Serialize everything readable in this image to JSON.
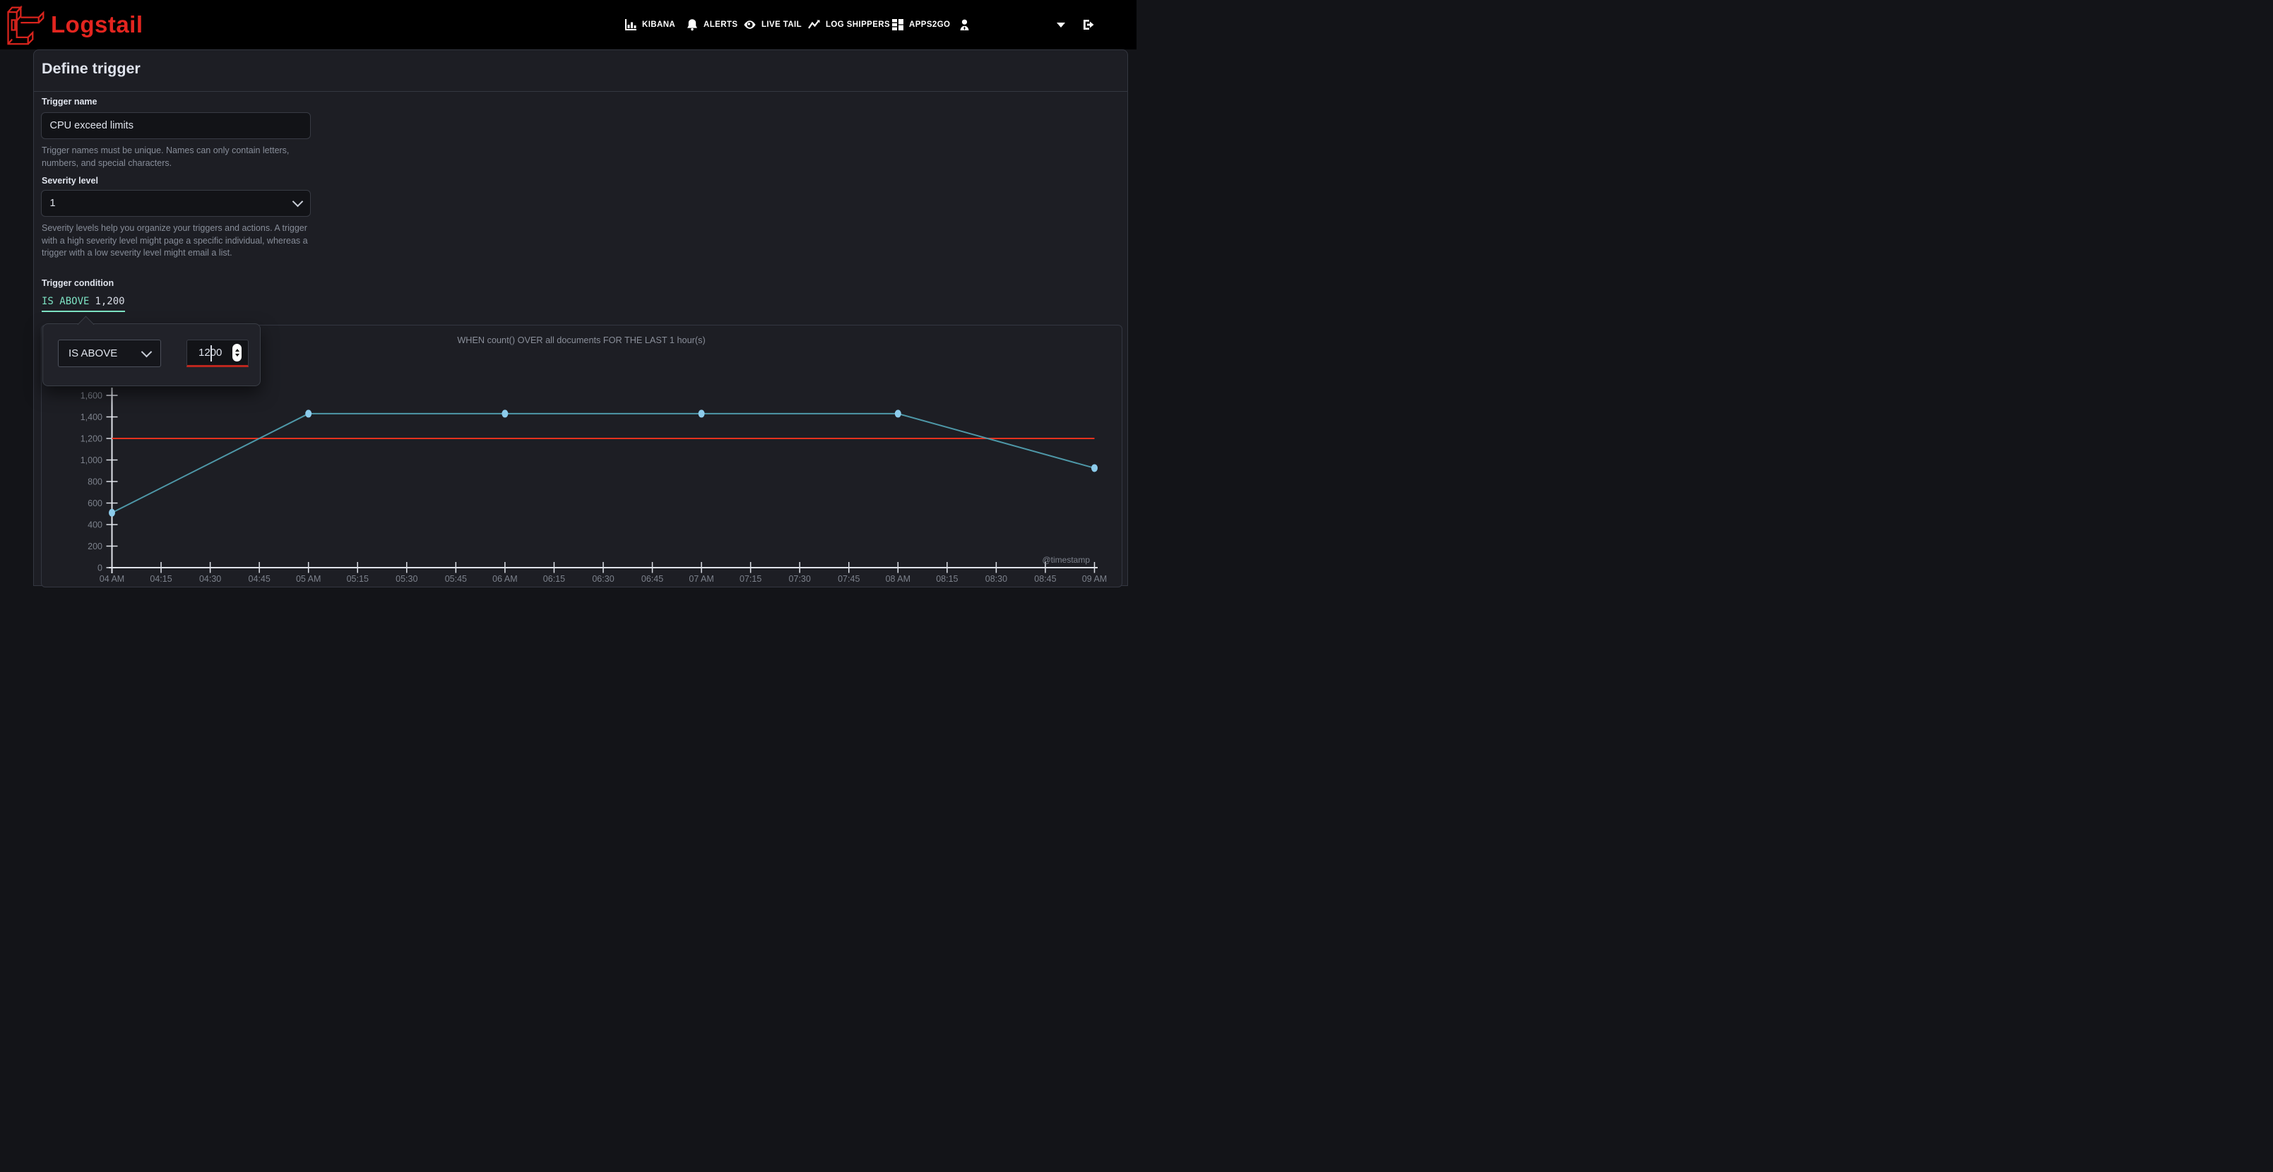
{
  "colors": {
    "brand-red": "#e3251f",
    "mint": "#7de2c3",
    "danger": "#bd271e",
    "page-bg": "#131418",
    "panel-bg": "#1d1e24",
    "input-bg": "#121317",
    "border": "#343741",
    "text": "#dfe3ec",
    "muted": "#878d99"
  },
  "header": {
    "brand": "Logstail",
    "nav": [
      {
        "label": "KIBANA",
        "icon": "bar-chart-icon"
      },
      {
        "label": "ALERTS",
        "icon": "bell-icon"
      },
      {
        "label": "LIVE TAIL",
        "icon": "eye-icon"
      },
      {
        "label": "LOG SHIPPERS",
        "icon": "activity-icon"
      },
      {
        "label": "APPS2GO",
        "icon": "grid-icon"
      }
    ]
  },
  "panel": {
    "title": "Define trigger",
    "trigger_name": {
      "label": "Trigger name",
      "value": "CPU exceed limits",
      "help": "Trigger names must be unique. Names can only contain letters, numbers, and special characters."
    },
    "severity": {
      "label": "Severity level",
      "value": "1",
      "help": "Severity levels help you organize your triggers and actions. A trigger with a high severity level might page a specific individual, whereas a trigger with a low severity level might email a list."
    },
    "condition": {
      "label": "Trigger condition",
      "operator": "IS ABOVE",
      "value_display": "1,200"
    }
  },
  "popover": {
    "operator": "IS ABOVE",
    "value": "1200"
  },
  "chart_data": {
    "type": "line",
    "title": "WHEN count() OVER all documents FOR THE LAST 1 hour(s)",
    "x_ticks": [
      "04 AM",
      "04:15",
      "04:30",
      "04:45",
      "05 AM",
      "05:15",
      "05:30",
      "05:45",
      "06 AM",
      "06:15",
      "06:30",
      "06:45",
      "07 AM",
      "07:15",
      "07:30",
      "07:45",
      "08 AM",
      "08:15",
      "08:30",
      "08:45",
      "09 AM"
    ],
    "y_ticks": [
      0,
      200,
      400,
      600,
      800,
      1000,
      1200,
      1400,
      1600
    ],
    "y_tick_labels": [
      "0",
      "200",
      "400",
      "600",
      "800",
      "1,000",
      "1,200",
      "1,400",
      "1,600"
    ],
    "ylim": [
      0,
      1600
    ],
    "series": [
      {
        "name": "count()",
        "x": [
          "04 AM",
          "05 AM",
          "06 AM",
          "07 AM",
          "08 AM",
          "09 AM"
        ],
        "x_index": [
          0,
          4,
          8,
          12,
          16,
          20
        ],
        "values": [
          510,
          1430,
          1430,
          1430,
          1430,
          925
        ]
      }
    ],
    "threshold": {
      "value": 1200,
      "color": "#e5321e"
    },
    "x_axis_label": "@timestamp",
    "grid": false,
    "legend": false,
    "axis_color": "#dfe2e9",
    "tick_color": "#7c818b",
    "line_color": "#4e98a8",
    "point_color": "#8ccbeb"
  }
}
